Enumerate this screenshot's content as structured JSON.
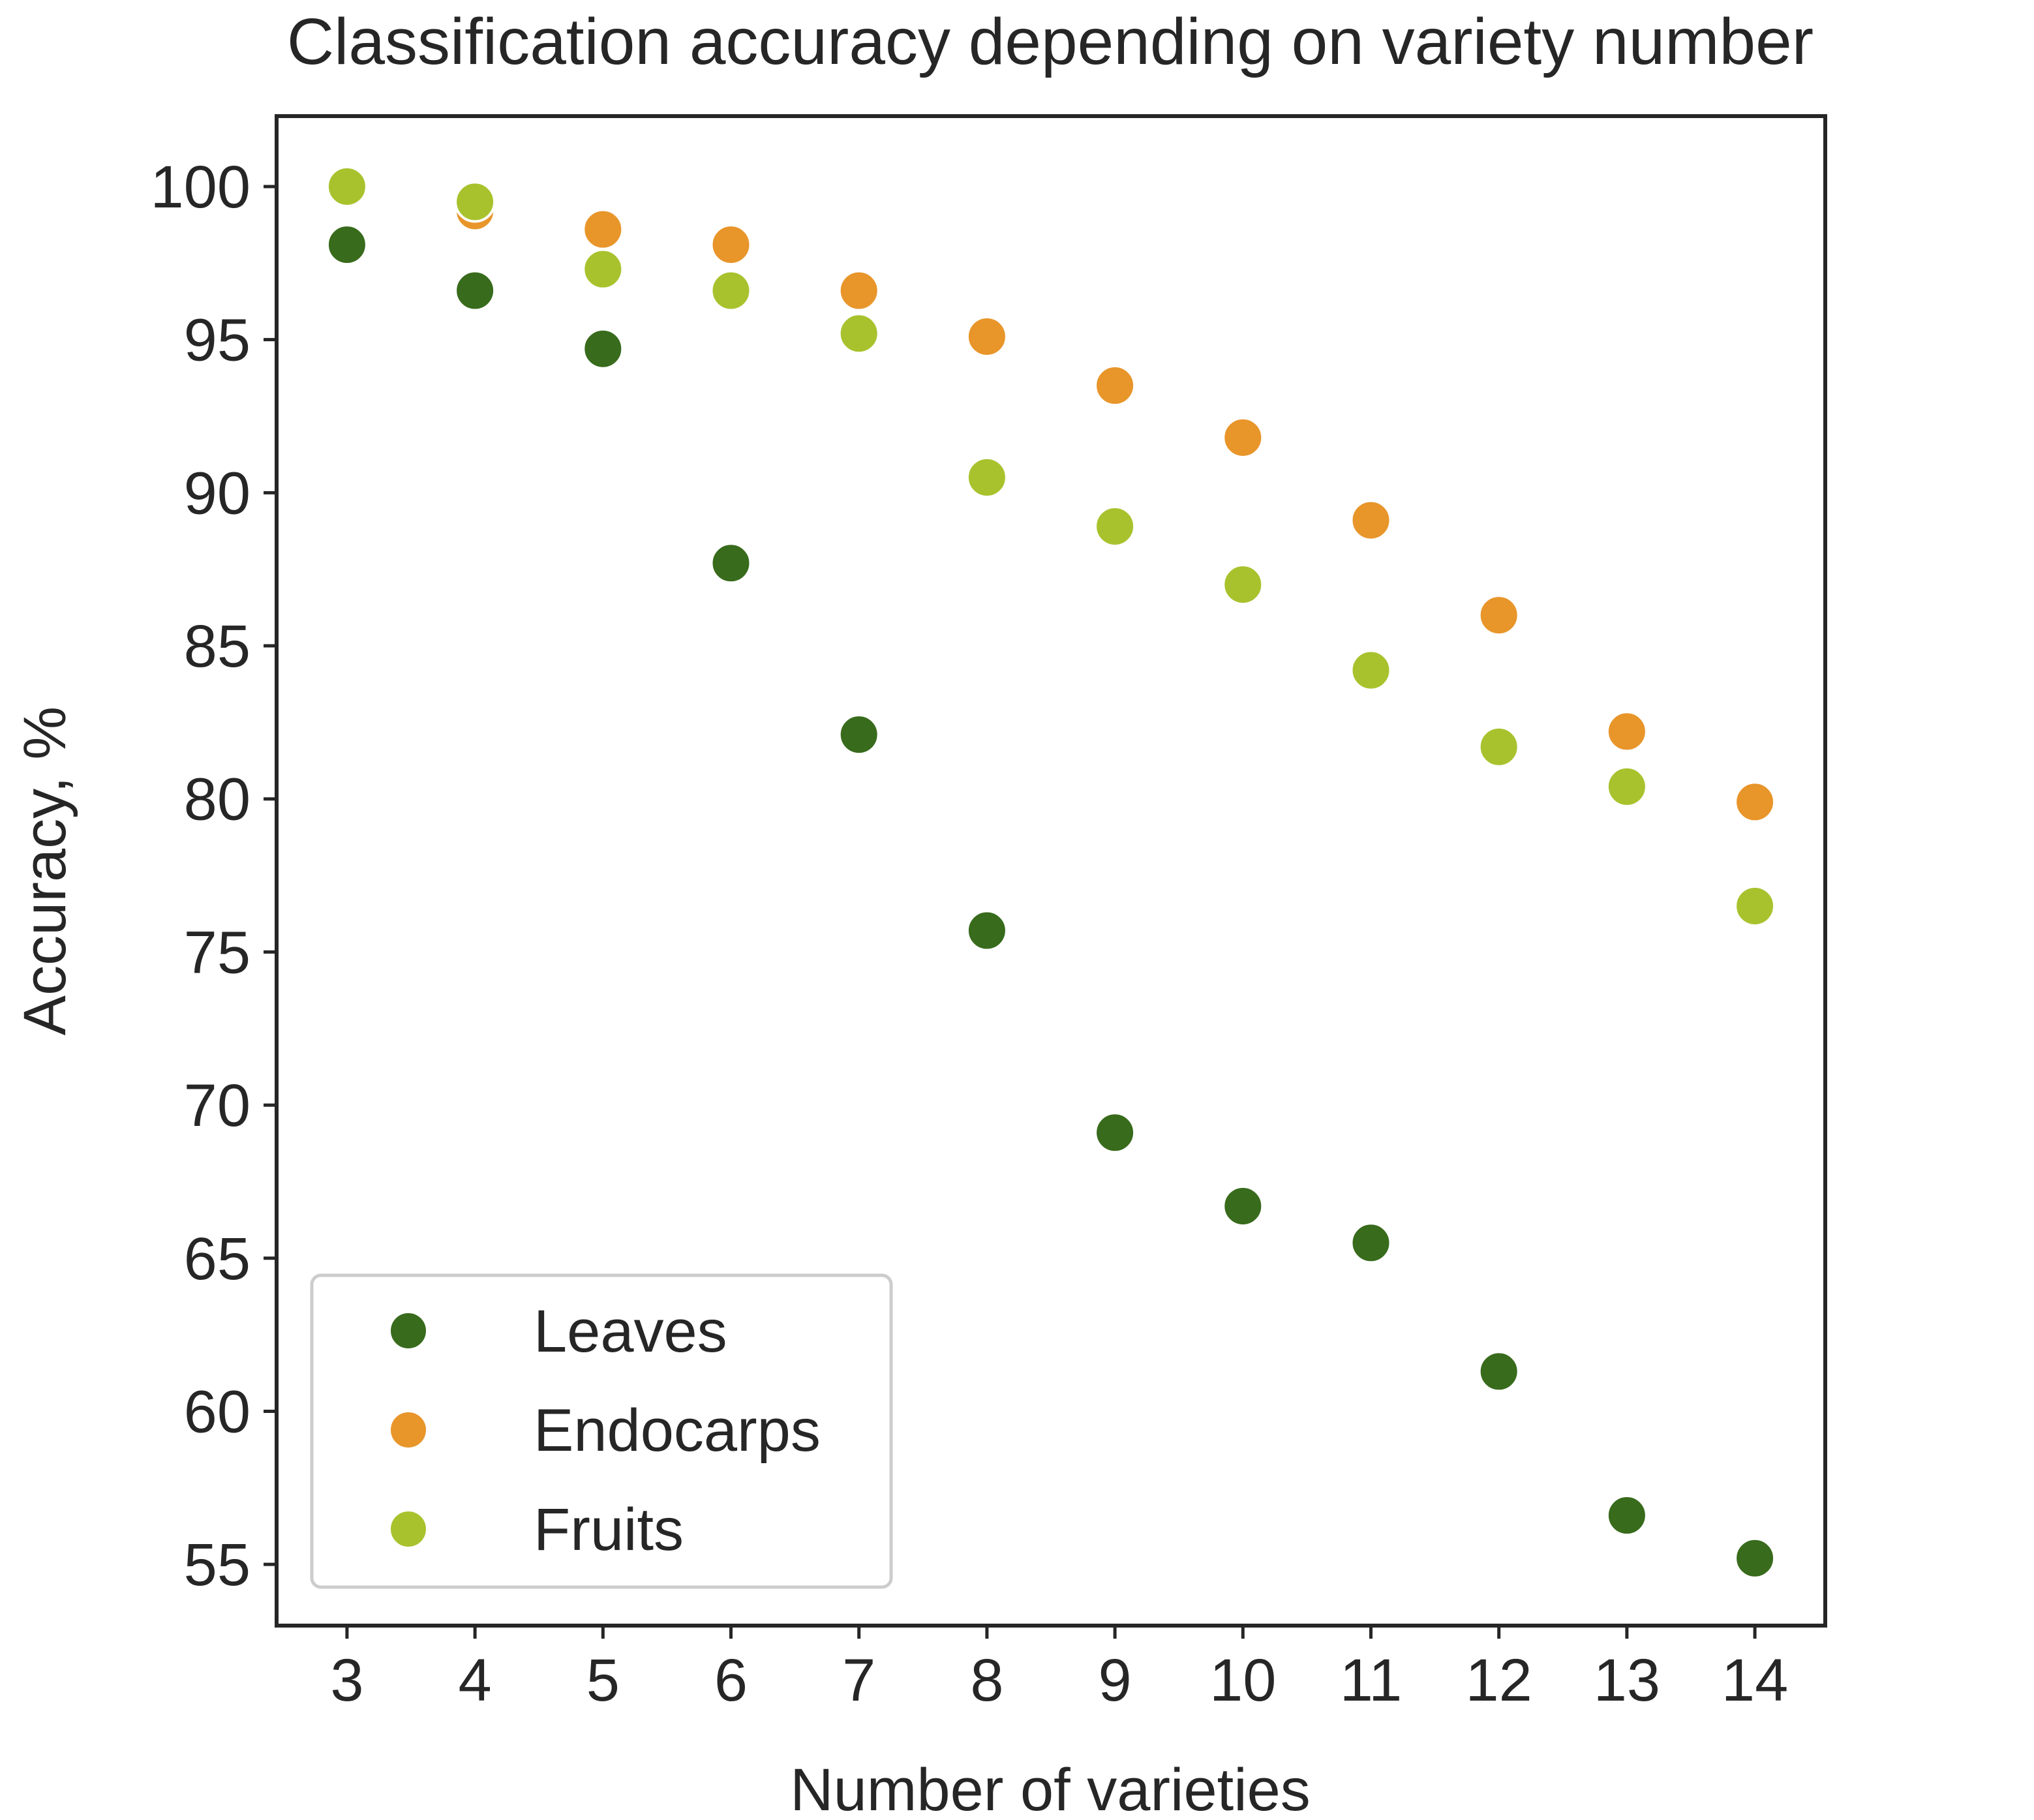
{
  "chart_data": {
    "type": "scatter",
    "title": "Classification accuracy depending on variety number",
    "xlabel": "Number of varieties",
    "ylabel": "Accuracy, %",
    "x": [
      3,
      4,
      5,
      6,
      7,
      8,
      9,
      10,
      11,
      12,
      13,
      14
    ],
    "xticks": [
      3,
      4,
      5,
      6,
      7,
      8,
      9,
      10,
      11,
      12,
      13,
      14
    ],
    "yticks": [
      55,
      60,
      65,
      70,
      75,
      80,
      85,
      90,
      95,
      100
    ],
    "xlim": [
      2.45,
      14.55
    ],
    "ylim": [
      53.0,
      102.3
    ],
    "grid": false,
    "legend": {
      "position": "lower-left"
    },
    "series": [
      {
        "name": "Leaves",
        "color": "#386b1c",
        "values": [
          98.1,
          96.6,
          94.7,
          87.7,
          82.1,
          75.7,
          69.1,
          66.7,
          65.5,
          61.3,
          56.6,
          55.2
        ]
      },
      {
        "name": "Endocarps",
        "color": "#e8952a",
        "values": [
          100.0,
          99.2,
          98.6,
          98.1,
          96.6,
          95.1,
          93.5,
          91.8,
          89.1,
          86.0,
          82.2,
          79.9
        ]
      },
      {
        "name": "Fruits",
        "color": "#a8c22d",
        "values": [
          100.0,
          99.5,
          97.3,
          96.6,
          95.2,
          90.5,
          88.9,
          87.0,
          84.2,
          81.7,
          80.4,
          76.5
        ]
      }
    ]
  }
}
